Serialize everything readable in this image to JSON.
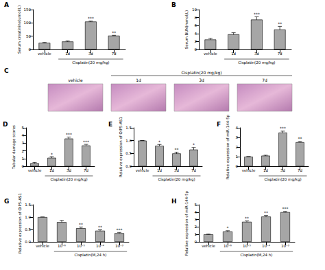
{
  "chart_data": [
    {
      "type": "bar",
      "title": "A",
      "y_label": "Serum creatinine(umol/L)",
      "group_label": "Cisplatin(20 mg/kg)",
      "categories": [
        "vehicle",
        "1d",
        "3d",
        "7d"
      ],
      "values": [
        25,
        30,
        105,
        52
      ],
      "errors": [
        1.5,
        2,
        2,
        1.5
      ],
      "annotations": [
        null,
        null,
        "***",
        "**"
      ],
      "color": "#a6a6a6",
      "ylim": [
        0,
        150
      ],
      "yticks": [
        0,
        50,
        100,
        150
      ],
      "grid": false
    },
    {
      "type": "bar",
      "title": "B",
      "y_label": "Serum BUN(mmol/L)",
      "group_label": "Cisplatin(20 mg/kg)",
      "categories": [
        "vehicle",
        "1d",
        "3d",
        "7d"
      ],
      "values": [
        2.5,
        3.8,
        7.5,
        5
      ],
      "errors": [
        0.3,
        0.4,
        0.7,
        0.8
      ],
      "annotations": [
        null,
        null,
        "***",
        "**"
      ],
      "color": "#a6a6a6",
      "ylim": [
        0,
        10
      ],
      "yticks": [
        0,
        2,
        4,
        6,
        8,
        10
      ],
      "grid": false
    },
    {
      "type": "bar",
      "title": "D",
      "y_label": "Tubular damage scores",
      "group_label": "Cisplatin(20 mg/kg)",
      "categories": [
        "vehicle",
        "1d",
        "3d",
        "7d"
      ],
      "values": [
        0.4,
        1.1,
        3.6,
        2.7
      ],
      "errors": [
        0.1,
        0.15,
        0.2,
        0.15
      ],
      "annotations": [
        null,
        "*",
        "***",
        "***"
      ],
      "color": "#a6a6a6",
      "ylim": [
        0,
        5
      ],
      "yticks": [
        0,
        1,
        2,
        3,
        4,
        5
      ],
      "grid": false
    },
    {
      "type": "bar",
      "title": "E",
      "y_label": "Relative expression of OIP5-AS1",
      "group_label": "Cisplatin(20 mg/kg)",
      "categories": [
        "vehicle",
        "1d",
        "3d",
        "7d"
      ],
      "values": [
        1.0,
        0.8,
        0.5,
        0.65
      ],
      "errors": [
        0,
        0.05,
        0.05,
        0.08
      ],
      "annotations": [
        null,
        "*",
        "**",
        "*"
      ],
      "color": "#a6a6a6",
      "ylim": [
        0,
        1.5
      ],
      "yticks": [
        {
          "value": 0,
          "label": "0.0"
        },
        0.5,
        {
          "value": 1,
          "label": "1.0"
        },
        1.5
      ],
      "grid": false
    },
    {
      "type": "bar",
      "title": "F",
      "y_label": "Relative expression of miR-144-5p",
      "group_label": "Cisplatin(20 mg/kg)",
      "categories": [
        "vehicle",
        "1d",
        "3d",
        "7d"
      ],
      "values": [
        1.0,
        1.1,
        3.5,
        2.5
      ],
      "errors": [
        0,
        0.05,
        0.15,
        0.1
      ],
      "annotations": [
        null,
        null,
        "***",
        "**"
      ],
      "color": "#a6a6a6",
      "ylim": [
        0,
        4
      ],
      "yticks": [
        0,
        1,
        2,
        3,
        4
      ],
      "grid": false
    },
    {
      "type": "bar",
      "title": "G",
      "y_label": "Relative expression of OIP5-AS1",
      "group_label": "Cisplatin(M,24 h)",
      "categories": [
        "vehicle",
        "10⁻⁶",
        "10⁻⁵",
        "10⁻⁴",
        "10⁻³"
      ],
      "values": [
        1.0,
        0.8,
        0.55,
        0.45,
        0.35
      ],
      "errors": [
        0,
        0.07,
        0.05,
        0.04,
        0.03
      ],
      "annotations": [
        null,
        null,
        "**",
        "**",
        "***"
      ],
      "color": "#a6a6a6",
      "ylim": [
        0,
        1.5
      ],
      "yticks": [
        {
          "value": 0,
          "label": "0.0"
        },
        0.5,
        {
          "value": 1,
          "label": "1.0"
        },
        1.5
      ],
      "grid": false
    },
    {
      "type": "bar",
      "title": "H",
      "y_label": "Relative expression of miR-144-5p",
      "group_label": "Cisplatin(M,24 h)",
      "categories": [
        "vehicle",
        "10⁻⁶",
        "10⁻⁵",
        "10⁻⁴",
        "10⁻³"
      ],
      "values": [
        1.0,
        1.4,
        2.7,
        3.4,
        4.0
      ],
      "errors": [
        0.05,
        0.1,
        0.12,
        0.15,
        0.1
      ],
      "annotations": [
        null,
        "*",
        "**",
        "**",
        "***"
      ],
      "color": "#a6a6a6",
      "ylim": [
        0,
        5
      ],
      "yticks": [
        0,
        1,
        2,
        3,
        4,
        5
      ],
      "grid": false
    }
  ],
  "panel_c": {
    "title": "C",
    "group_label": "Cisplatin(20 mg/kg)",
    "images": [
      "vehicle",
      "1d",
      "3d",
      "7d"
    ]
  }
}
